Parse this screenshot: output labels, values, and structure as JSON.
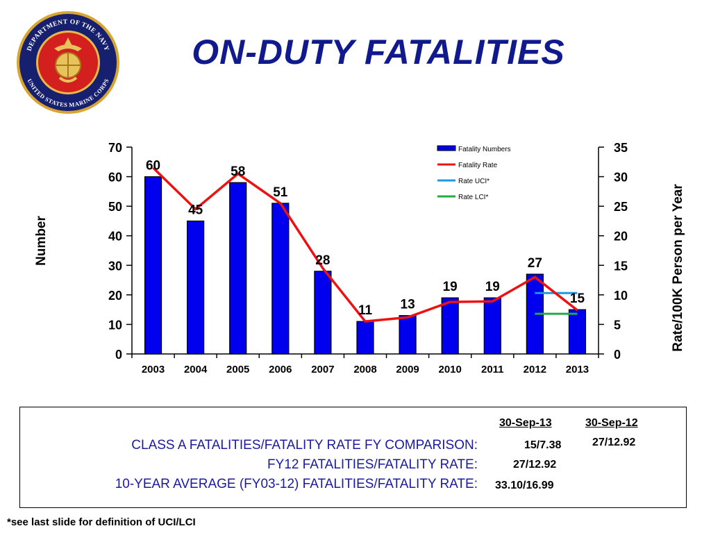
{
  "header": {
    "title": "ON-DUTY  FATALITIES",
    "seal_text_top": "DEPARTMENT OF THE NAVY",
    "seal_text_bottom": "UNITED STATES MARINE CORPS"
  },
  "chart_data": {
    "type": "bar",
    "categories": [
      "2003",
      "2004",
      "2005",
      "2006",
      "2007",
      "2008",
      "2009",
      "2010",
      "2011",
      "2012",
      "2013"
    ],
    "ylabel": "Number",
    "y2label": "Rate/100K Person per Year",
    "ylim": [
      0,
      70
    ],
    "y2lim": [
      0,
      35
    ],
    "yticks": [
      0,
      10,
      20,
      30,
      40,
      50,
      60,
      70
    ],
    "y2ticks": [
      0,
      5,
      10,
      15,
      20,
      25,
      30,
      35
    ],
    "legend_position": "top-center",
    "series": [
      {
        "name": "Fatality Numbers",
        "kind": "bar",
        "axis": "left",
        "color": "#0000ee",
        "values": [
          60,
          45,
          58,
          51,
          28,
          11,
          13,
          19,
          19,
          27,
          15
        ]
      },
      {
        "name": "Fatality Rate",
        "kind": "line",
        "axis": "right",
        "color": "#ee1111",
        "values": [
          31.5,
          24.5,
          30.5,
          25.5,
          14.5,
          5.5,
          6.2,
          8.8,
          8.9,
          13.0,
          7.4
        ]
      },
      {
        "name": "Rate UCI*",
        "kind": "segment",
        "axis": "right",
        "color": "#1a9ae0",
        "x_start": "2012",
        "x_end": "2013",
        "value": 10.3
      },
      {
        "name": "Rate LCI*",
        "kind": "segment",
        "axis": "right",
        "color": "#22aa44",
        "x_start": "2012",
        "x_end": "2013",
        "value": 6.8
      }
    ]
  },
  "comparison": {
    "col1_header": "30-Sep-13",
    "col2_header": "30-Sep-12",
    "rows": [
      {
        "label": "CLASS A FATALITIES/FATALITY RATE FY COMPARISON:",
        "col1": "15/7.38",
        "col2": "27/12.92"
      },
      {
        "label": "FY12 FATALITIES/FATALITY RATE:",
        "col1": "27/12.92",
        "col2": ""
      },
      {
        "label": "10-YEAR AVERAGE (FY03-12) FATALITIES/FATALITY RATE:",
        "col1": "33.10/16.99",
        "col2": ""
      }
    ]
  },
  "footnote": "*see last slide for definition of UCI/LCI"
}
